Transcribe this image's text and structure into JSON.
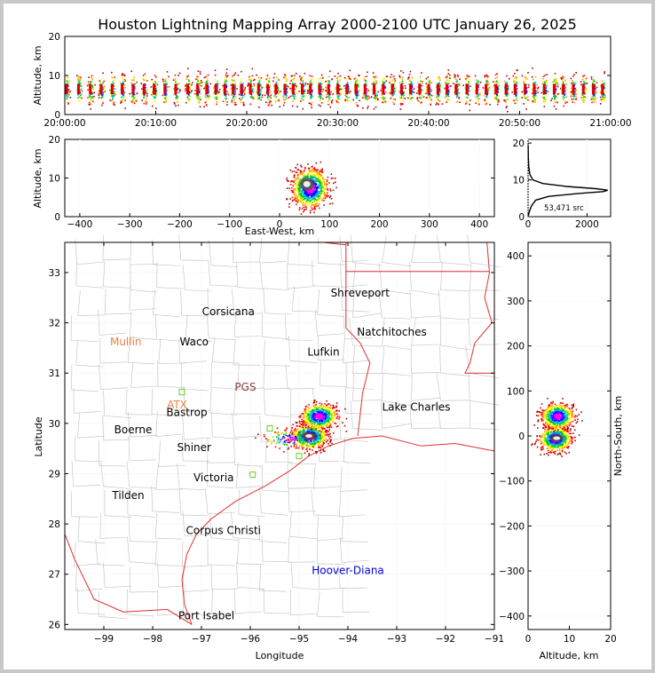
{
  "chart_data": [
    {
      "type": "scatter",
      "panel": "altitude-time",
      "title": "Houston Lightning Mapping Array 2000-2100 UTC January 26, 2025",
      "ylabel": "Altitude, km",
      "ylim": [
        0,
        20
      ],
      "yticks": [
        "0",
        "10",
        "20"
      ],
      "xticks": [
        "20:00:00",
        "20:10:00",
        "20:20:00",
        "20:30:00",
        "20:40:00",
        "20:50:00",
        "21:00:00"
      ],
      "xlim": [
        0,
        60
      ],
      "bursts_min": [
        0.2,
        1.5,
        2.8,
        4.0,
        5.2,
        6.3,
        7.5,
        8.7,
        9.8,
        11.0,
        12.2,
        13.5,
        14.6,
        15.6,
        16.6,
        17.6,
        18.5,
        19.4,
        20.4,
        21.3,
        22.3,
        23.2,
        24.2,
        25.1,
        26.1,
        27.0,
        28.0,
        29.0,
        30.0,
        31.0,
        32.0,
        33.0,
        34.0,
        35.0,
        36.0,
        37.0,
        38.0,
        39.0,
        40.0,
        41.0,
        42.0,
        43.0,
        44.2,
        45.3,
        46.3,
        47.4,
        48.5,
        49.5,
        50.6,
        51.6,
        52.7,
        53.8,
        54.8,
        55.9,
        57.0,
        58.1,
        59.1
      ],
      "core_altitude_km": 6.5
    },
    {
      "type": "scatter",
      "panel": "altitude-east-west",
      "xlabel": "East-West, km",
      "ylabel": "Altitude, km",
      "xlim": [
        -430,
        430
      ],
      "ylim": [
        0,
        20
      ],
      "xticks": [
        "−400",
        "−300",
        "−200",
        "−100",
        "0",
        "100",
        "200",
        "300",
        "400"
      ],
      "yticks": [
        "0",
        "10",
        "20"
      ],
      "cores": [
        {
          "x": 60,
          "y": 7.5
        }
      ]
    },
    {
      "type": "line",
      "panel": "altitude-histogram",
      "xlim": [
        0,
        2800
      ],
      "ylim": [
        0,
        21
      ],
      "xticks": [
        "0",
        "2000"
      ],
      "yticks": [
        "0",
        "10",
        "20"
      ],
      "annotation": "53,471 src",
      "x": [
        10,
        30,
        60,
        120,
        260,
        700,
        1700,
        2550,
        2700,
        2300,
        1300,
        500,
        160,
        60,
        25,
        10,
        4
      ],
      "y": [
        0.3,
        1.0,
        1.8,
        3.0,
        4.5,
        5.5,
        6.3,
        6.8,
        7.2,
        7.6,
        8.2,
        9.0,
        10.0,
        11.5,
        13.5,
        16.0,
        19.5
      ]
    },
    {
      "type": "scatter",
      "panel": "map",
      "xlabel": "Longitude",
      "ylabel": "Latitude",
      "xlim": [
        -99.8,
        -91
      ],
      "ylim": [
        25.9,
        33.6
      ],
      "xticks": [
        "−99",
        "−98",
        "−97",
        "−96",
        "−95",
        "−94",
        "−93",
        "−92",
        "−91"
      ],
      "yticks": [
        "26",
        "27",
        "28",
        "29",
        "30",
        "31",
        "32",
        "33"
      ],
      "cities": [
        {
          "name": "Shreveport",
          "lon": -93.75,
          "lat": 32.52,
          "color": "#000000"
        },
        {
          "name": "Corsicana",
          "lon": -96.45,
          "lat": 32.15,
          "color": "#000000"
        },
        {
          "name": "Natchitoches",
          "lon": -93.1,
          "lat": 31.75,
          "color": "#000000"
        },
        {
          "name": "Mullin",
          "lon": -98.55,
          "lat": 31.55,
          "color": "#f08040"
        },
        {
          "name": "Waco",
          "lon": -97.15,
          "lat": 31.55,
          "color": "#000000"
        },
        {
          "name": "Lufkin",
          "lon": -94.5,
          "lat": 31.35,
          "color": "#000000"
        },
        {
          "name": "PGS",
          "lon": -96.1,
          "lat": 30.65,
          "color": "#8b3a3a"
        },
        {
          "name": "ATX",
          "lon": -97.5,
          "lat": 30.3,
          "color": "#f08040"
        },
        {
          "name": "Bastrop",
          "lon": -97.3,
          "lat": 30.15,
          "color": "#000000"
        },
        {
          "name": "Lake Charles",
          "lon": -92.6,
          "lat": 30.25,
          "color": "#000000"
        },
        {
          "name": "Boerne",
          "lon": -98.4,
          "lat": 29.8,
          "color": "#000000"
        },
        {
          "name": "Shiner",
          "lon": -97.15,
          "lat": 29.45,
          "color": "#000000"
        },
        {
          "name": "Victoria",
          "lon": -96.75,
          "lat": 28.85,
          "color": "#000000"
        },
        {
          "name": "Tilden",
          "lon": -98.5,
          "lat": 28.5,
          "color": "#000000"
        },
        {
          "name": "Corpus Christi",
          "lon": -96.55,
          "lat": 27.8,
          "color": "#000000"
        },
        {
          "name": "Hoover-Diana",
          "lon": -94.0,
          "lat": 27.0,
          "color": "#0000dd"
        },
        {
          "name": "Port Isabel",
          "lon": -96.9,
          "lat": 26.1,
          "color": "#000000"
        }
      ],
      "sensors": [
        {
          "lon": -97.4,
          "lat": 30.62
        },
        {
          "lon": -95.95,
          "lat": 28.98
        },
        {
          "lon": -95.0,
          "lat": 29.35
        },
        {
          "lon": -95.6,
          "lat": 29.9
        }
      ],
      "storm_cores": [
        {
          "lon": -94.8,
          "lat": 29.75
        },
        {
          "lon": -94.6,
          "lat": 30.15
        }
      ]
    },
    {
      "type": "scatter",
      "panel": "north-south-altitude",
      "xlabel": "Altitude, km",
      "ylabel": "North-South, km",
      "xlim": [
        0,
        20
      ],
      "ylim": [
        -430,
        430
      ],
      "xticks": [
        "0",
        "10",
        "20"
      ],
      "yticks": [
        "−400",
        "−300",
        "−200",
        "−100",
        "0",
        "100",
        "200",
        "300",
        "400"
      ],
      "cores": [
        {
          "alt": 6.5,
          "ns": -5
        },
        {
          "alt": 7,
          "ns": 45
        }
      ]
    }
  ]
}
